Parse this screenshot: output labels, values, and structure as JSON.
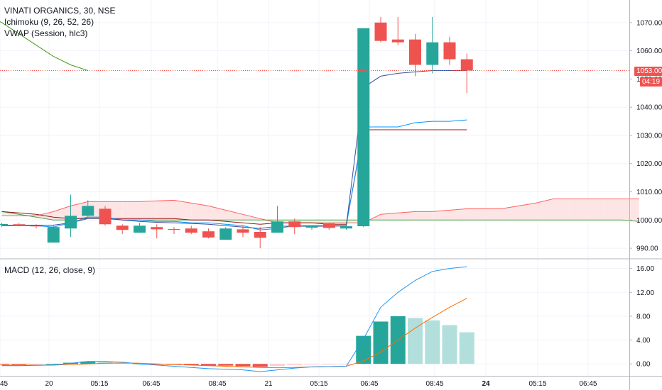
{
  "header": {
    "symbol_line": "VINATI ORGANICS, 30, NSE",
    "ichimoku_label": "Ichimoku (9, 26, 52, 26)",
    "vwap_label": "VWAP (Session, hlc3)",
    "macd_label": "MACD (12, 26, close, 9)",
    "last_price": "1053.00",
    "countdown": "04:19"
  },
  "colors": {
    "up": "#26a69a",
    "down": "#ef5350",
    "hist_up_strong": "#26a69a",
    "hist_up_weak": "#b2dfdb",
    "hist_down_strong": "#ef5350",
    "hist_down_weak": "#ffcdd2",
    "macd_line": "#2196f3",
    "signal_line": "#ff6d00",
    "conversion": "#0496ff",
    "base": "#991515",
    "lead_a": "#008000",
    "lead_b": "#ff0000",
    "cloud_green": "#e8f5e9",
    "cloud_red": "#fde5e5",
    "grid": "#f0f3fa"
  },
  "chart_data": [
    {
      "type": "candlestick",
      "panel": "price",
      "x_tick_labels": [
        "45",
        "20",
        "05:15",
        "06:45",
        "08:45",
        "21",
        "05:15",
        "06:45",
        "08:45",
        "24",
        "05:15",
        "06:45"
      ],
      "y_ticks": [
        990,
        1000,
        1010,
        1020,
        1030,
        1040,
        1050,
        1060,
        1070
      ],
      "y_tick_labels": [
        "990.00",
        "1000.00",
        "1010.00",
        "1020.00",
        "1030.00",
        "1040.00",
        "1050.00",
        "1060.00",
        "1070.00"
      ],
      "ylim": [
        986.5,
        1078
      ],
      "last_price_line": 1053,
      "candles": [
        {
          "o": 998.3,
          "h": 999.0,
          "l": 997.5,
          "c": 998.6
        },
        {
          "o": 998.5,
          "h": 999.0,
          "l": 997.8,
          "c": 998.2
        },
        {
          "o": 998.0,
          "h": 998.5,
          "l": 997.0,
          "c": 997.8
        },
        {
          "o": 992.0,
          "h": 998.0,
          "l": 992.0,
          "c": 997.5
        },
        {
          "o": 997.0,
          "h": 1009.0,
          "l": 994.0,
          "c": 1001.5
        },
        {
          "o": 1001.5,
          "h": 1007.0,
          "l": 1001.0,
          "c": 1005.0
        },
        {
          "o": 1004.0,
          "h": 1005.0,
          "l": 998.0,
          "c": 998.5
        },
        {
          "o": 998.0,
          "h": 998.5,
          "l": 995.0,
          "c": 996.5
        },
        {
          "o": 995.5,
          "h": 999.0,
          "l": 995.5,
          "c": 998.0
        },
        {
          "o": 997.5,
          "h": 998.5,
          "l": 993.5,
          "c": 996.7
        },
        {
          "o": 996.8,
          "h": 997.5,
          "l": 995.0,
          "c": 996.5
        },
        {
          "o": 997.0,
          "h": 998.0,
          "l": 995.0,
          "c": 995.5
        },
        {
          "o": 996.0,
          "h": 997.0,
          "l": 993.5,
          "c": 993.8
        },
        {
          "o": 993.0,
          "h": 997.5,
          "l": 993.0,
          "c": 997.0
        },
        {
          "o": 996.7,
          "h": 998.0,
          "l": 994.0,
          "c": 995.5
        },
        {
          "o": 995.8,
          "h": 997.5,
          "l": 990.0,
          "c": 993.7
        },
        {
          "o": 995.5,
          "h": 1005.0,
          "l": 995.5,
          "c": 999.5
        },
        {
          "o": 999.5,
          "h": 1000.5,
          "l": 995.0,
          "c": 997.5
        },
        {
          "o": 997.3,
          "h": 998.0,
          "l": 996.5,
          "c": 997.8
        },
        {
          "o": 998.8,
          "h": 999.0,
          "l": 996.5,
          "c": 997.2
        },
        {
          "o": 997.0,
          "h": 998.0,
          "l": 996.5,
          "c": 997.8
        },
        {
          "o": 997.8,
          "h": 1068.0,
          "l": 997.5,
          "c": 1068.0
        },
        {
          "o": 1070.0,
          "h": 1072.0,
          "l": 1063.0,
          "c": 1063.5
        },
        {
          "o": 1064.0,
          "h": 1072.0,
          "l": 1062.0,
          "c": 1063.0
        },
        {
          "o": 1064.0,
          "h": 1066.0,
          "l": 1051.0,
          "c": 1055.0
        },
        {
          "o": 1055.0,
          "h": 1072.0,
          "l": 1052.0,
          "c": 1063.0
        },
        {
          "o": 1063.0,
          "h": 1065.0,
          "l": 1055.0,
          "c": 1057.0
        },
        {
          "o": 1057.0,
          "h": 1059.0,
          "l": 1045.0,
          "c": 1053.0
        }
      ],
      "lead_a": [
        1003,
        1002,
        1001,
        1000,
        1000,
        1001,
        1001,
        1000,
        1000,
        1000,
        1000,
        1000,
        1000,
        1000,
        1000,
        1000,
        1000,
        1000,
        1000,
        1000,
        1000,
        1000,
        1000,
        1000,
        1000,
        1000,
        1000,
        1000,
        1000,
        1000,
        1000,
        1000,
        1000,
        1000,
        1000,
        1000,
        1000,
        999.5
      ],
      "lead_b": [
        1001.5,
        1001.5,
        1001.5,
        1003,
        1005,
        1006.5,
        1006.5,
        1006.5,
        1006.5,
        1006.8,
        1007,
        1006,
        1005,
        1003.5,
        1002,
        1000.5,
        999,
        999,
        999,
        999,
        999,
        999,
        1002,
        1002.5,
        1003,
        1003,
        1003.5,
        1004,
        1004,
        1004,
        1005,
        1006,
        1007.5,
        1007.5,
        1007.5,
        1007.5,
        1007.5,
        1007.5
      ],
      "conversion": [
        998,
        998,
        998,
        997.5,
        999,
        1001,
        1001,
        1000,
        1000,
        999.5,
        999.5,
        999,
        999,
        998.5,
        998,
        996.5,
        997,
        998,
        998,
        998,
        998,
        1033,
        1033,
        1033,
        1034.5,
        1035,
        1035,
        1035.5
      ],
      "base": [
        1003,
        1002.5,
        1002,
        1001,
        1000.5,
        1000.5,
        1000.5,
        1000.5,
        1000.5,
        1000.5,
        1000.5,
        1000,
        1000,
        999.5,
        999,
        998.5,
        999,
        999,
        999,
        998.5,
        998.5,
        1032,
        1032,
        1032,
        1032,
        1032,
        1032,
        1032
      ],
      "lagging": [
        1073,
        1070,
        1066,
        1062,
        1058,
        1055,
        1053
      ],
      "vwap": [
        998.2,
        998.2,
        998.2,
        998.2,
        999.0,
        1000.5,
        1000.5,
        1000.0,
        999.5,
        999.2,
        999.0,
        998.8,
        998.5,
        998.0,
        997.5,
        997.0,
        997.8,
        997.8,
        997.8,
        997.8,
        997.9,
        1047.0,
        1051.0,
        1052.0,
        1052.5,
        1053.0,
        1053.0,
        1053.0
      ]
    },
    {
      "type": "macd",
      "panel": "indicator",
      "y_ticks": [
        0,
        4,
        8,
        12,
        16
      ],
      "y_tick_labels": [
        "0.00",
        "4.00",
        "8.00",
        "12.00",
        "16.00"
      ],
      "ylim": [
        -2,
        17.5
      ],
      "histogram": [
        -0.1,
        -0.1,
        -0.05,
        0,
        0.2,
        0.4,
        0.3,
        0.15,
        0,
        -0.1,
        -0.15,
        -0.2,
        -0.3,
        -0.3,
        -0.4,
        -0.5,
        -0.35,
        -0.2,
        -0.1,
        -0.05,
        -0.02,
        4.7,
        7.1,
        8.0,
        7.7,
        7.3,
        6.5,
        5.3
      ],
      "macd": [
        -0.3,
        -0.3,
        -0.25,
        -0.2,
        0.1,
        0.4,
        0.4,
        0.3,
        0.0,
        -0.2,
        -0.4,
        -0.6,
        -0.8,
        -0.9,
        -1.0,
        -1.3,
        -1.0,
        -0.7,
        -0.5,
        -0.45,
        -0.4,
        4.2,
        9.5,
        12.0,
        14.0,
        15.5,
        16.0,
        16.3
      ],
      "signal": [
        -0.2,
        -0.2,
        -0.2,
        -0.2,
        -0.1,
        0.0,
        0.1,
        0.15,
        0.1,
        0.0,
        -0.1,
        -0.2,
        -0.3,
        -0.4,
        -0.5,
        -0.6,
        -0.65,
        -0.6,
        -0.5,
        -0.45,
        -0.4,
        0.5,
        2.0,
        4.0,
        6.0,
        7.8,
        9.5,
        11.0
      ]
    }
  ]
}
